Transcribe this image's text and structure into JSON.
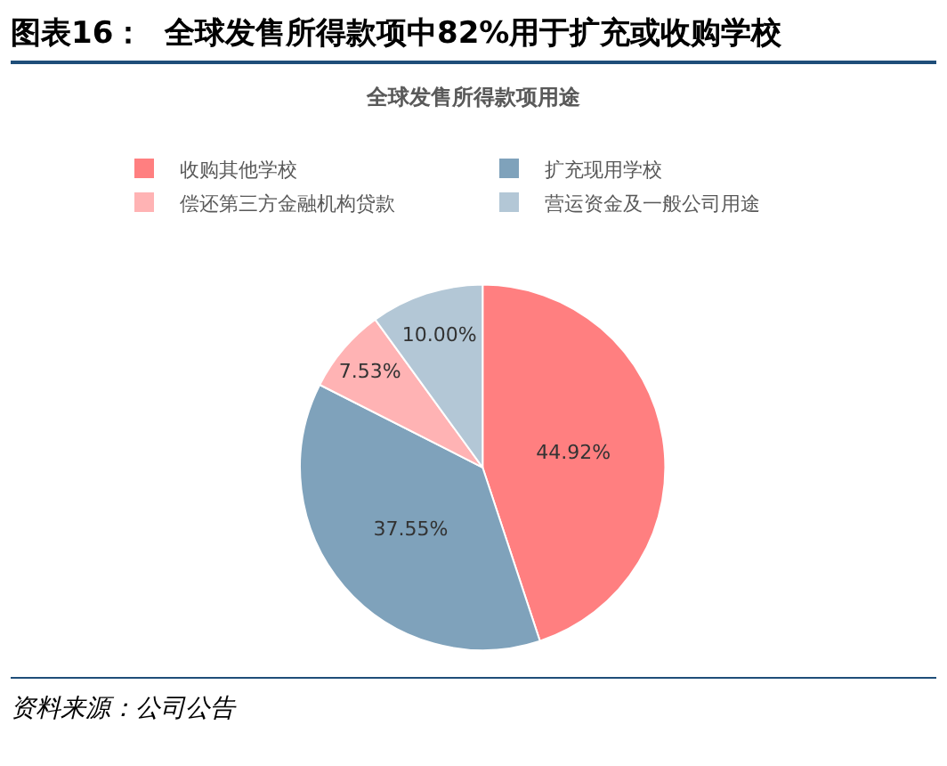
{
  "chart_data": {
    "type": "pie",
    "title": "图表16：  全球发售所得款项中82%用于扩充或收购学校",
    "subtitle": "全球发售所得款项用途",
    "categories": [
      "收购其他学校",
      "扩充现用学校",
      "偿还第三方金融机构贷款",
      "营运资金及一般公司用途"
    ],
    "values": [
      44.92,
      37.55,
      7.53,
      10.0
    ],
    "value_labels": [
      "44.92%",
      "37.55%",
      "7.53%",
      "10.00%"
    ],
    "colors": [
      "#ff7f80",
      "#7fa2bb",
      "#ffb3b4",
      "#b3c7d6"
    ],
    "legend": "top",
    "annotations": [
      "资料来源：公司公告"
    ]
  }
}
